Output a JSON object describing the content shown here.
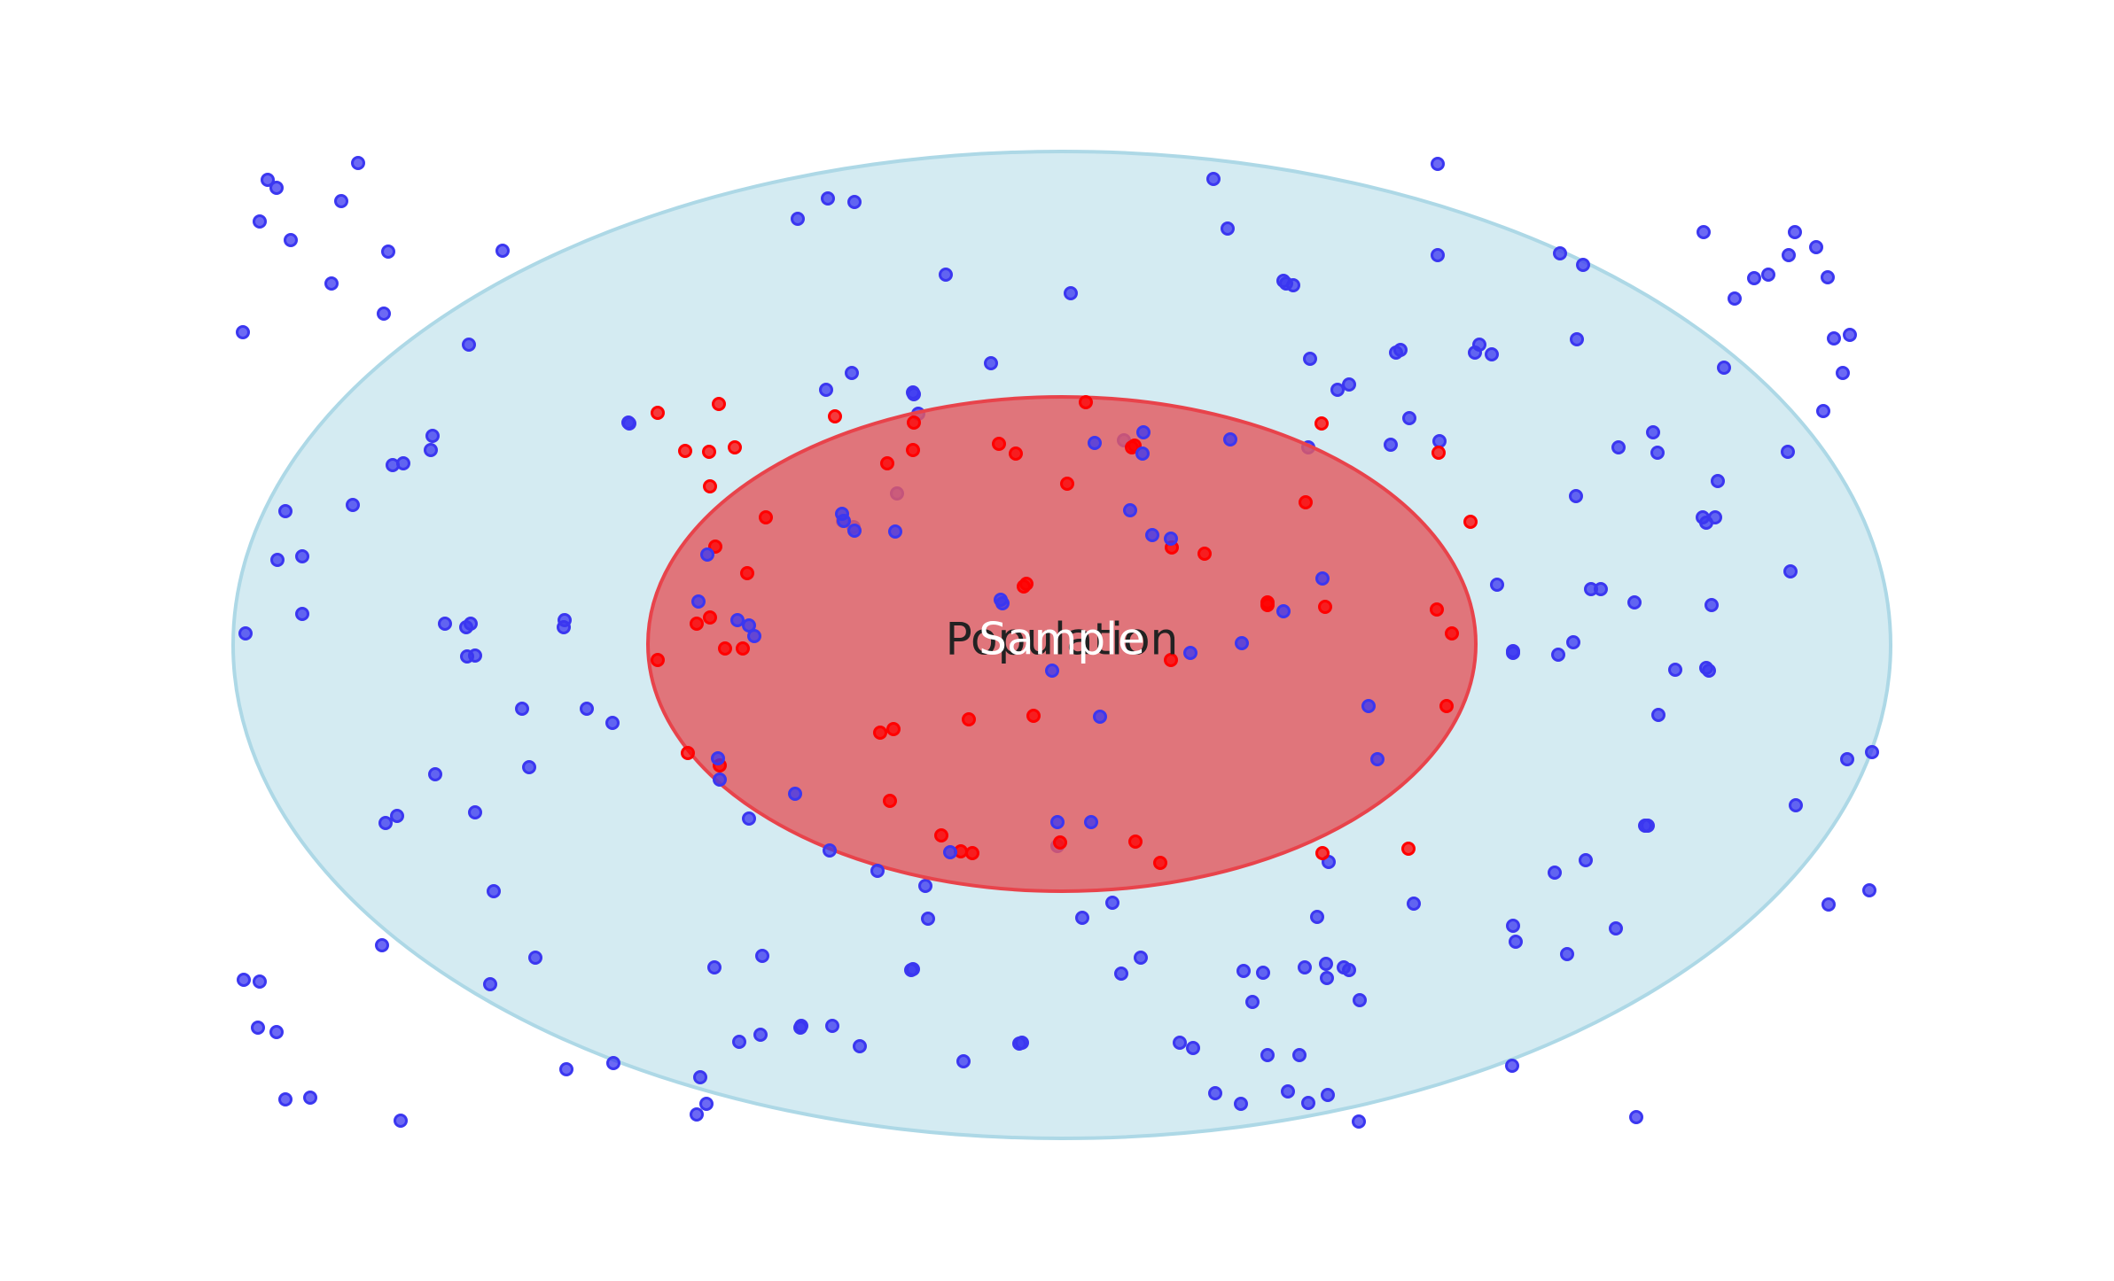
{
  "labels": {
    "population": "Population",
    "sample": "Sample"
  },
  "colors": {
    "population_fill": "#add8e6",
    "population_stroke": "#add8e6",
    "sample_fill": "#e35a60",
    "sample_stroke": "#e8434b",
    "population_point": "#3b37f0",
    "sample_point": "#ff0000",
    "population_label": "#222222",
    "sample_label": "#ffffff"
  }
}
